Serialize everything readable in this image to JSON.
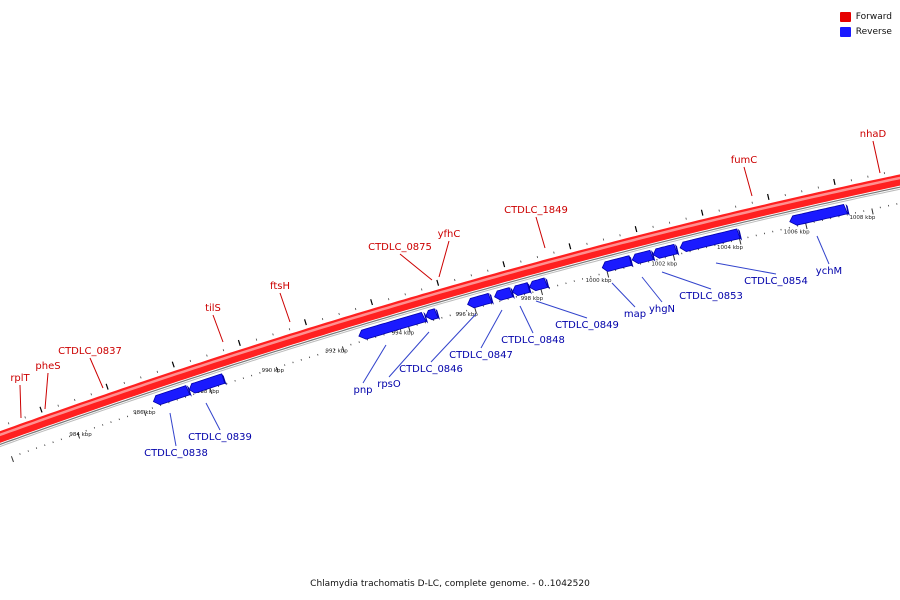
{
  "legend": {
    "forward_label": "Forward",
    "reverse_label": "Reverse",
    "forward_color": "#e60000",
    "reverse_color": "#1a1aff"
  },
  "caption": "Chlamydia trachomatis D-LC, complete genome. - 0..1042520",
  "colors": {
    "forward_text": "#cc0000",
    "reverse_text": "#0000aa",
    "backbone": "#ff2020",
    "backbone_light": "#ff9090",
    "gray_line": "#888888"
  },
  "forward_genes": [
    {
      "name": "rplT"
    },
    {
      "name": "pheS"
    },
    {
      "name": "CTDLC_0837"
    },
    {
      "name": "tilS"
    },
    {
      "name": "ftsH"
    },
    {
      "name": "CTDLC_0875"
    },
    {
      "name": "yfhC"
    },
    {
      "name": "CTDLC_1849"
    },
    {
      "name": "fumC"
    },
    {
      "name": "nhaD"
    }
  ],
  "reverse_genes": [
    {
      "name": "CTDLC_0838"
    },
    {
      "name": "CTDLC_0839"
    },
    {
      "name": "pnp"
    },
    {
      "name": "rpsO"
    },
    {
      "name": "CTDLC_0846"
    },
    {
      "name": "CTDLC_0847"
    },
    {
      "name": "CTDLC_0848"
    },
    {
      "name": "CTDLC_0849"
    },
    {
      "name": "map"
    },
    {
      "name": "yhgN"
    },
    {
      "name": "CTDLC_0853"
    },
    {
      "name": "CTDLC_0854"
    },
    {
      "name": "ychM"
    }
  ],
  "scale_labels": [
    {
      "text": "984 kbp"
    },
    {
      "text": "986 kbp"
    },
    {
      "text": "988 kbp"
    },
    {
      "text": "990 kbp"
    },
    {
      "text": "992 kbp"
    },
    {
      "text": "994 kbp"
    },
    {
      "text": "996 kbp"
    },
    {
      "text": "998 kbp"
    },
    {
      "text": "1000 kbp"
    },
    {
      "text": "1002 kbp"
    },
    {
      "text": "1004 kbp"
    },
    {
      "text": "1006 kbp"
    },
    {
      "text": "1008 kbp"
    }
  ]
}
